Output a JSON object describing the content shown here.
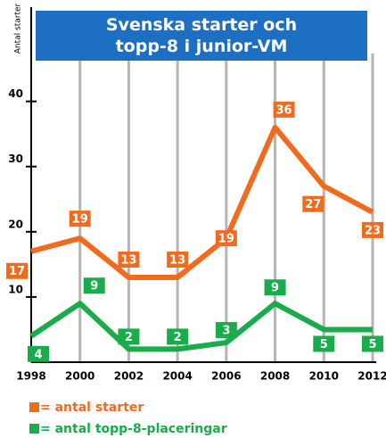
{
  "chart_data": {
    "type": "line",
    "title": "Svenska starter och topp-8 i junior-VM",
    "y_label": "Antal starter",
    "x": [
      1998,
      2000,
      2002,
      2004,
      2006,
      2008,
      2010,
      2012
    ],
    "xlim": [
      1998,
      2012
    ],
    "xticks": [
      1998,
      2000,
      2002,
      2004,
      2006,
      2008,
      2010,
      2012
    ],
    "ylim": [
      0,
      55
    ],
    "yticks": [
      10,
      20,
      30,
      40
    ],
    "grid": true,
    "series": [
      {
        "name": "= antal starter",
        "color": "#f26b1d",
        "values": [
          17,
          19,
          13,
          13,
          19,
          36,
          27,
          23
        ]
      },
      {
        "name": "= antal topp-8-placeringar",
        "color": "#1aab4b",
        "values": [
          4,
          9,
          2,
          2,
          3,
          9,
          5,
          5
        ]
      }
    ]
  }
}
